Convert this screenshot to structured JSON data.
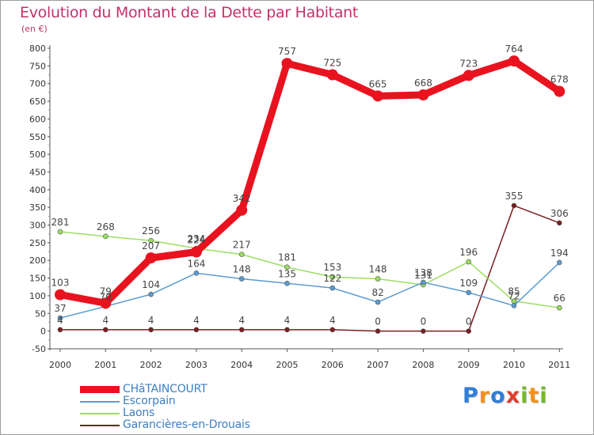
{
  "header": {
    "title": "Evolution du Montant de la Dette par Habitant",
    "subtitle": "(en €)"
  },
  "logo": {
    "letters": [
      "P",
      "r",
      "o",
      "x",
      "i",
      "t",
      "i"
    ],
    "colors": [
      "#2f7ed8",
      "#f3911b",
      "#2f7ed8",
      "#e33c2c",
      "#76b82a",
      "#f3911b",
      "#76b82a"
    ]
  },
  "chart_data": {
    "type": "line",
    "title": "Evolution du Montant de la Dette par Habitant",
    "subtitle": "(en €)",
    "x": [
      "2000",
      "2001",
      "2002",
      "2003",
      "2004",
      "2005",
      "2006",
      "2007",
      "2008",
      "2009",
      "2010",
      "2011"
    ],
    "ylim": [
      -50,
      800
    ],
    "yticks": [
      "800",
      "750",
      "700",
      "650",
      "600",
      "550",
      "500",
      "450",
      "400",
      "350",
      "300",
      "250",
      "200",
      "150",
      "100",
      "50",
      "0",
      "-50"
    ],
    "grid": false,
    "legend_position": "bottom-left",
    "series": [
      {
        "name": "CHâTAINCOURT",
        "color": "#e8131f",
        "values": [
          103,
          79,
          207,
          224,
          342,
          757,
          725,
          665,
          668,
          723,
          764,
          678
        ],
        "labels": [
          "103",
          "79",
          "207",
          "224",
          "342",
          "757",
          "725",
          "665",
          "668",
          "723",
          "764",
          "678"
        ]
      },
      {
        "name": "Escorpain",
        "color": "#5b9cd1",
        "values": [
          37,
          70,
          104,
          164,
          148,
          135,
          122,
          82,
          138,
          109,
          72,
          194
        ],
        "labels": [
          "37",
          "70",
          "104",
          "164",
          "148",
          "135",
          "122",
          "82",
          "138",
          "109",
          "72",
          "194"
        ]
      },
      {
        "name": "Laons",
        "color": "#9bde63",
        "values": [
          281,
          268,
          256,
          234,
          217,
          181,
          153,
          148,
          131,
          196,
          85,
          66
        ],
        "labels": [
          "281",
          "268",
          "256",
          "234",
          "217",
          "181",
          "153",
          "148",
          "131",
          "196",
          "85",
          "66"
        ]
      },
      {
        "name": "Garancières-en-Drouais",
        "color": "#7b1e1e",
        "values": [
          4,
          4,
          4,
          4,
          4,
          4,
          4,
          0,
          0,
          0,
          355,
          306
        ],
        "labels": [
          "4",
          "4",
          "4",
          "4",
          "4",
          "4",
          "4",
          "0",
          "0",
          "0",
          "355",
          "306"
        ]
      }
    ]
  }
}
